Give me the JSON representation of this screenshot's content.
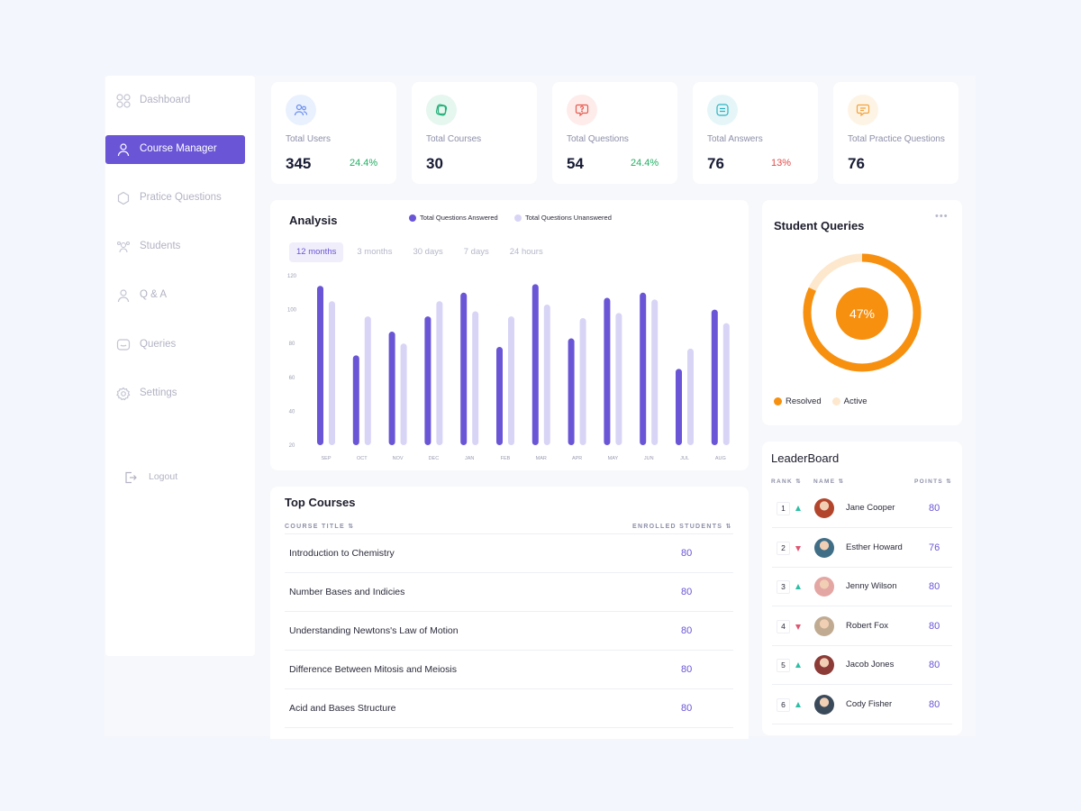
{
  "sidebar": {
    "items": [
      {
        "label": "Dashboard",
        "icon": "grid-icon",
        "active": false
      },
      {
        "label": "Course Manager",
        "icon": "user-icon",
        "active": true
      },
      {
        "label": "Pratice Questions",
        "icon": "hexagon-icon",
        "active": false
      },
      {
        "label": "Students",
        "icon": "students-icon",
        "active": false
      },
      {
        "label": "Q & A",
        "icon": "user-icon",
        "active": false
      },
      {
        "label": "Queries",
        "icon": "chat-icon",
        "active": false
      },
      {
        "label": "Settings",
        "icon": "gear-icon",
        "active": false
      }
    ],
    "logout": "Logout"
  },
  "stats": [
    {
      "label": "Total Users",
      "value": "345",
      "delta": "24.4%",
      "trend": "up",
      "icon": "users-icon",
      "color": "#6a8ff0",
      "bg": "#eaf1fe"
    },
    {
      "label": "Total Courses",
      "value": "30",
      "delta": "",
      "trend": "",
      "icon": "courses-icon",
      "color": "#22b07a",
      "bg": "#e6f7ef"
    },
    {
      "label": "Total Questions",
      "value": "54",
      "delta": "24.4%",
      "trend": "up",
      "icon": "question-icon",
      "color": "#e85a4f",
      "bg": "#fdecea"
    },
    {
      "label": "Total Answers",
      "value": "76",
      "delta": "13%",
      "trend": "down",
      "icon": "answer-icon",
      "color": "#2bb3c0",
      "bg": "#e6f6f8"
    },
    {
      "label": "Total Practice Questions",
      "value": "76",
      "delta": "",
      "trend": "",
      "icon": "practice-icon",
      "color": "#f2a23a",
      "bg": "#fef4e6"
    }
  ],
  "analysis": {
    "title": "Analysis",
    "periods": [
      "12 months",
      "3 months",
      "30 days",
      "7 days",
      "24 hours"
    ],
    "active_period": "12 months"
  },
  "chart_data": {
    "type": "bar",
    "categories": [
      "SEP",
      "OCT",
      "NOV",
      "DEC",
      "JAN",
      "FEB",
      "MAR",
      "APR",
      "MAY",
      "JUN",
      "JUL",
      "AUG"
    ],
    "series": [
      {
        "name": "Total Questions Answered",
        "color": "#6a55d6",
        "values": [
          114,
          73,
          87,
          96,
          110,
          78,
          115,
          83,
          107,
          110,
          65,
          100
        ]
      },
      {
        "name": "Total Questions Unanswered",
        "color": "#d8d4f6",
        "values": [
          105,
          96,
          80,
          105,
          99,
          96,
          103,
          95,
          98,
          106,
          77,
          92
        ]
      }
    ],
    "yticks": [
      20,
      40,
      60,
      80,
      100,
      120
    ],
    "ylim": [
      20,
      120
    ]
  },
  "courses": {
    "title": "Top Courses",
    "col_title": "COURSE TITLE",
    "col_students": "ENROLLED STUDENTS",
    "rows": [
      {
        "title": "Introduction to Chemistry",
        "students": "80"
      },
      {
        "title": "Number Bases and Indicies",
        "students": "80"
      },
      {
        "title": "Understanding Newtons's Law of Motion",
        "students": "80"
      },
      {
        "title": "Difference Between Mitosis and Meiosis",
        "students": "80"
      },
      {
        "title": "Acid and Bases Structure",
        "students": "80"
      }
    ]
  },
  "queries": {
    "title": "Student Queries",
    "more": "•••",
    "percent": 47,
    "percent_label": "47%",
    "legend": [
      {
        "label": "Resolved",
        "color": "#f7900f"
      },
      {
        "label": "Active",
        "color": "#fde8cd"
      }
    ]
  },
  "leaderboard": {
    "title": "LeaderBoard",
    "col_rank": "RANK",
    "col_name": "NAME",
    "col_points": "POINTS",
    "rows": [
      {
        "rank": "1",
        "trend": "up",
        "name": "Jane Cooper",
        "points": "80",
        "avatar": "#b2452c"
      },
      {
        "rank": "2",
        "trend": "down",
        "name": "Esther Howard",
        "points": "76",
        "avatar": "#3f6e86"
      },
      {
        "rank": "3",
        "trend": "up",
        "name": "Jenny Wilson",
        "points": "80",
        "avatar": "#e3a6a2"
      },
      {
        "rank": "4",
        "trend": "down",
        "name": "Robert Fox",
        "points": "80",
        "avatar": "#c0ab92"
      },
      {
        "rank": "5",
        "trend": "up",
        "name": "Jacob Jones",
        "points": "80",
        "avatar": "#8c3b36"
      },
      {
        "rank": "6",
        "trend": "up",
        "name": "Cody Fisher",
        "points": "80",
        "avatar": "#3b4a5a"
      }
    ]
  }
}
